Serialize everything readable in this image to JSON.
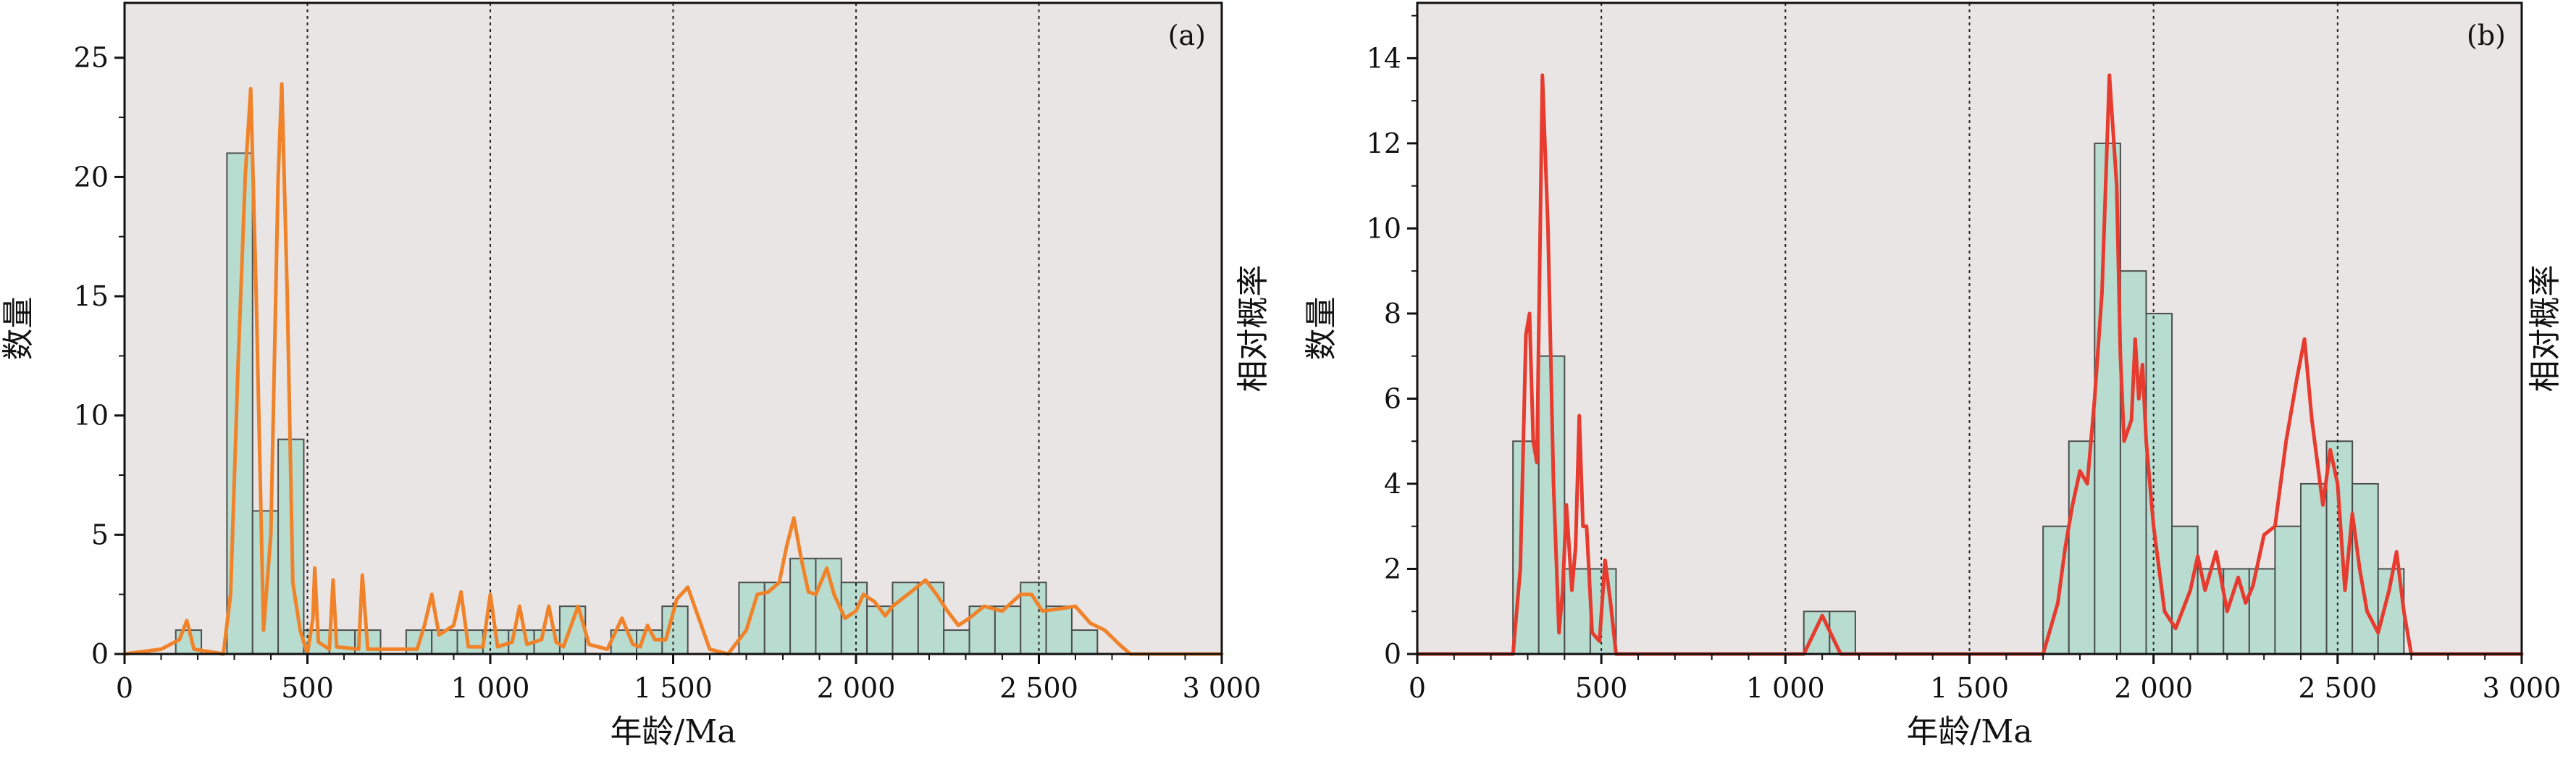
{
  "chart_data": [
    {
      "type": "bar",
      "panel_label": "(a)",
      "xlabel": "年龄/Ma",
      "ylabel": "数量",
      "ylabel_right": "相对概率",
      "xlim": [
        0,
        3000
      ],
      "ylim": [
        0,
        27.3
      ],
      "x_ticks": [
        0,
        500,
        1000,
        1500,
        2000,
        2500,
        3000
      ],
      "x_tick_labels": [
        "0",
        "500",
        "1 000",
        "1 500",
        "2 000",
        "2 500",
        "3 000"
      ],
      "y_ticks": [
        0,
        5,
        10,
        15,
        20,
        25
      ],
      "y_tick_labels": [
        "0",
        "5",
        "10",
        "15",
        "20",
        "25"
      ],
      "vlines": [
        500,
        1000,
        1500,
        2000,
        2500
      ],
      "bin_width": 70,
      "histogram": [
        {
          "start": 140,
          "count": 1
        },
        {
          "start": 280,
          "count": 21
        },
        {
          "start": 350,
          "count": 6
        },
        {
          "start": 420,
          "count": 9
        },
        {
          "start": 490,
          "count": 1
        },
        {
          "start": 560,
          "count": 1
        },
        {
          "start": 630,
          "count": 1
        },
        {
          "start": 770,
          "count": 1
        },
        {
          "start": 840,
          "count": 1
        },
        {
          "start": 910,
          "count": 1
        },
        {
          "start": 980,
          "count": 1
        },
        {
          "start": 1050,
          "count": 1
        },
        {
          "start": 1120,
          "count": 1
        },
        {
          "start": 1190,
          "count": 2
        },
        {
          "start": 1330,
          "count": 1
        },
        {
          "start": 1400,
          "count": 1
        },
        {
          "start": 1470,
          "count": 2
        },
        {
          "start": 1680,
          "count": 3
        },
        {
          "start": 1750,
          "count": 3
        },
        {
          "start": 1820,
          "count": 4
        },
        {
          "start": 1890,
          "count": 4
        },
        {
          "start": 1960,
          "count": 3
        },
        {
          "start": 2030,
          "count": 2
        },
        {
          "start": 2100,
          "count": 3
        },
        {
          "start": 2170,
          "count": 3
        },
        {
          "start": 2240,
          "count": 1
        },
        {
          "start": 2310,
          "count": 2
        },
        {
          "start": 2380,
          "count": 2
        },
        {
          "start": 2450,
          "count": 3
        },
        {
          "start": 2520,
          "count": 2
        },
        {
          "start": 2590,
          "count": 1
        }
      ],
      "pdp_curve": {
        "color": "#F0832A",
        "points": [
          [
            0,
            0
          ],
          [
            100,
            0.2
          ],
          [
            150,
            0.6
          ],
          [
            170,
            1.4
          ],
          [
            190,
            0.2
          ],
          [
            270,
            0
          ],
          [
            290,
            2.5
          ],
          [
            310,
            12
          ],
          [
            330,
            20
          ],
          [
            345,
            23.7
          ],
          [
            360,
            15
          ],
          [
            380,
            1
          ],
          [
            400,
            5
          ],
          [
            420,
            20
          ],
          [
            430,
            23.9
          ],
          [
            445,
            15
          ],
          [
            460,
            3
          ],
          [
            480,
            1
          ],
          [
            500,
            0
          ],
          [
            515,
            1.5
          ],
          [
            520,
            3.6
          ],
          [
            530,
            0.5
          ],
          [
            560,
            0.2
          ],
          [
            570,
            3.1
          ],
          [
            580,
            0.3
          ],
          [
            640,
            0.2
          ],
          [
            650,
            3.3
          ],
          [
            665,
            0.2
          ],
          [
            800,
            0.2
          ],
          [
            820,
            1.2
          ],
          [
            840,
            2.5
          ],
          [
            860,
            0.8
          ],
          [
            900,
            1.2
          ],
          [
            920,
            2.6
          ],
          [
            940,
            0.3
          ],
          [
            980,
            0.3
          ],
          [
            1000,
            2.5
          ],
          [
            1020,
            0.3
          ],
          [
            1060,
            0.5
          ],
          [
            1080,
            2
          ],
          [
            1100,
            0.4
          ],
          [
            1140,
            0.6
          ],
          [
            1160,
            2
          ],
          [
            1180,
            0.5
          ],
          [
            1200,
            0.3
          ],
          [
            1240,
            2
          ],
          [
            1270,
            0.4
          ],
          [
            1320,
            0.2
          ],
          [
            1360,
            1.5
          ],
          [
            1390,
            0.4
          ],
          [
            1410,
            0.3
          ],
          [
            1430,
            1.2
          ],
          [
            1450,
            0.6
          ],
          [
            1480,
            0.6
          ],
          [
            1510,
            2.3
          ],
          [
            1540,
            2.8
          ],
          [
            1570,
            1.5
          ],
          [
            1600,
            0.2
          ],
          [
            1650,
            0
          ],
          [
            1700,
            1
          ],
          [
            1730,
            2.5
          ],
          [
            1760,
            2.6
          ],
          [
            1790,
            3
          ],
          [
            1810,
            4.5
          ],
          [
            1830,
            5.7
          ],
          [
            1850,
            4
          ],
          [
            1870,
            2.6
          ],
          [
            1890,
            2.5
          ],
          [
            1920,
            3.6
          ],
          [
            1940,
            2.5
          ],
          [
            1970,
            1.5
          ],
          [
            2000,
            1.8
          ],
          [
            2020,
            2.5
          ],
          [
            2050,
            2.2
          ],
          [
            2080,
            1.6
          ],
          [
            2100,
            2
          ],
          [
            2150,
            2.6
          ],
          [
            2190,
            3.1
          ],
          [
            2220,
            2.5
          ],
          [
            2250,
            1.8
          ],
          [
            2280,
            1.2
          ],
          [
            2310,
            1.5
          ],
          [
            2350,
            2
          ],
          [
            2400,
            1.8
          ],
          [
            2450,
            2.5
          ],
          [
            2480,
            2.5
          ],
          [
            2510,
            1.8
          ],
          [
            2560,
            1.9
          ],
          [
            2600,
            2
          ],
          [
            2640,
            1.3
          ],
          [
            2680,
            1
          ],
          [
            2720,
            0.4
          ],
          [
            2750,
            0
          ],
          [
            3000,
            0
          ]
        ]
      }
    },
    {
      "type": "bar",
      "panel_label": "(b)",
      "xlabel": "年龄/Ma",
      "ylabel": "数量",
      "ylabel_right": "相对概率",
      "xlim": [
        0,
        3000
      ],
      "ylim": [
        0,
        15.3
      ],
      "x_ticks": [
        0,
        500,
        1000,
        1500,
        2000,
        2500,
        3000
      ],
      "x_tick_labels": [
        "0",
        "500",
        "1 000",
        "1 500",
        "2 000",
        "2 500",
        "3 000"
      ],
      "y_ticks": [
        0,
        2,
        4,
        6,
        8,
        10,
        12,
        14
      ],
      "y_tick_labels": [
        "0",
        "2",
        "4",
        "6",
        "8",
        "10",
        "12",
        "14"
      ],
      "vlines": [
        500,
        1000,
        1500,
        2000,
        2500
      ],
      "bin_width": 70,
      "histogram": [
        {
          "start": 260,
          "count": 5
        },
        {
          "start": 330,
          "count": 7
        },
        {
          "start": 400,
          "count": 2
        },
        {
          "start": 470,
          "count": 2
        },
        {
          "start": 1050,
          "count": 1
        },
        {
          "start": 1120,
          "count": 1
        },
        {
          "start": 1700,
          "count": 3
        },
        {
          "start": 1770,
          "count": 5
        },
        {
          "start": 1840,
          "count": 12
        },
        {
          "start": 1910,
          "count": 9
        },
        {
          "start": 1980,
          "count": 8
        },
        {
          "start": 2050,
          "count": 3
        },
        {
          "start": 2120,
          "count": 2
        },
        {
          "start": 2190,
          "count": 2
        },
        {
          "start": 2260,
          "count": 2
        },
        {
          "start": 2330,
          "count": 3
        },
        {
          "start": 2400,
          "count": 4
        },
        {
          "start": 2470,
          "count": 5
        },
        {
          "start": 2540,
          "count": 4
        },
        {
          "start": 2610,
          "count": 2
        }
      ],
      "pdp_curve": {
        "color": "#E63B2E",
        "points": [
          [
            0,
            0
          ],
          [
            260,
            0
          ],
          [
            280,
            2
          ],
          [
            295,
            7.5
          ],
          [
            305,
            8
          ],
          [
            315,
            5
          ],
          [
            325,
            4.5
          ],
          [
            340,
            13.6
          ],
          [
            355,
            10
          ],
          [
            370,
            4
          ],
          [
            385,
            0.5
          ],
          [
            395,
            1.5
          ],
          [
            405,
            3.5
          ],
          [
            420,
            1.5
          ],
          [
            430,
            2.5
          ],
          [
            440,
            5.6
          ],
          [
            450,
            3
          ],
          [
            460,
            3
          ],
          [
            475,
            0.5
          ],
          [
            495,
            0.3
          ],
          [
            510,
            2.2
          ],
          [
            525,
            1.2
          ],
          [
            540,
            0
          ],
          [
            1050,
            0
          ],
          [
            1100,
            0.9
          ],
          [
            1150,
            0
          ],
          [
            1700,
            0
          ],
          [
            1740,
            1.2
          ],
          [
            1760,
            2.5
          ],
          [
            1780,
            3.5
          ],
          [
            1800,
            4.3
          ],
          [
            1820,
            4
          ],
          [
            1840,
            6
          ],
          [
            1860,
            8.5
          ],
          [
            1880,
            13.6
          ],
          [
            1900,
            11
          ],
          [
            1910,
            7
          ],
          [
            1920,
            5
          ],
          [
            1940,
            5.5
          ],
          [
            1950,
            7.4
          ],
          [
            1960,
            6
          ],
          [
            1970,
            6.8
          ],
          [
            1980,
            5
          ],
          [
            2000,
            3
          ],
          [
            2030,
            1
          ],
          [
            2060,
            0.6
          ],
          [
            2100,
            1.5
          ],
          [
            2120,
            2.3
          ],
          [
            2140,
            1.5
          ],
          [
            2170,
            2.4
          ],
          [
            2200,
            1
          ],
          [
            2230,
            1.8
          ],
          [
            2250,
            1.2
          ],
          [
            2270,
            1.6
          ],
          [
            2300,
            2.8
          ],
          [
            2330,
            3
          ],
          [
            2360,
            5
          ],
          [
            2390,
            6.5
          ],
          [
            2410,
            7.4
          ],
          [
            2430,
            5.5
          ],
          [
            2460,
            3.5
          ],
          [
            2480,
            4.8
          ],
          [
            2500,
            4
          ],
          [
            2520,
            1.5
          ],
          [
            2540,
            3.3
          ],
          [
            2560,
            2
          ],
          [
            2580,
            1
          ],
          [
            2610,
            0.5
          ],
          [
            2640,
            1.5
          ],
          [
            2660,
            2.4
          ],
          [
            2680,
            1
          ],
          [
            2700,
            0
          ],
          [
            3000,
            0
          ]
        ]
      }
    }
  ]
}
